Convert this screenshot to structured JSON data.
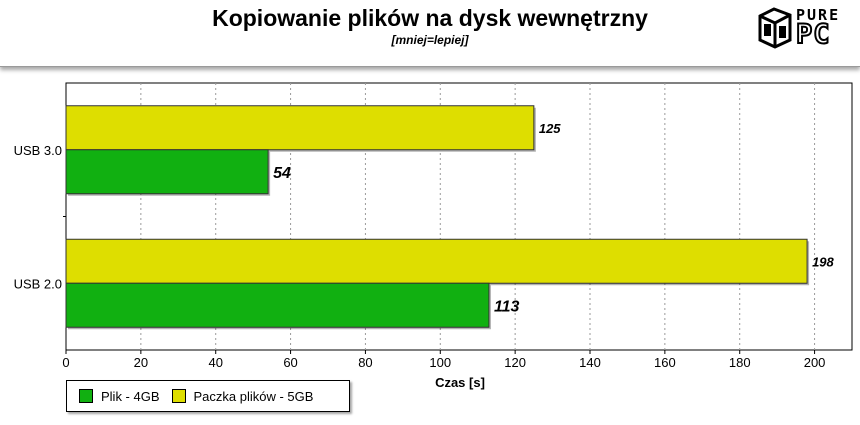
{
  "header": {
    "title": "Kopiowanie plików na dysk wewnętrzny",
    "subtitle": "[mniej=lepiej]",
    "logo_text_top": "PURE",
    "logo_text_bottom": "PC"
  },
  "colors": {
    "series_yellow": "#dede00",
    "series_green": "#11b011",
    "grid": "#9a9a9a"
  },
  "chart_data": {
    "type": "bar",
    "orientation": "horizontal",
    "title": "Kopiowanie plików na dysk wewnętrzny",
    "subtitle": "[mniej=lepiej]",
    "categories": [
      "USB 3.0",
      "USB 2.0"
    ],
    "series": [
      {
        "name": "Paczka plików - 5GB",
        "values": [
          125,
          198
        ],
        "color": "#dede00"
      },
      {
        "name": "Plik - 4GB",
        "values": [
          54,
          113
        ],
        "color": "#11b011"
      }
    ],
    "xlabel": "Czas [s]",
    "ylabel": "",
    "xlim": [
      0,
      210
    ],
    "xticks": [
      0,
      20,
      40,
      60,
      80,
      100,
      120,
      140,
      160,
      180,
      200
    ],
    "grid": true,
    "legend_placement": "bottom-left",
    "legend": [
      "Plik - 4GB",
      "Paczka plików - 5GB"
    ]
  }
}
